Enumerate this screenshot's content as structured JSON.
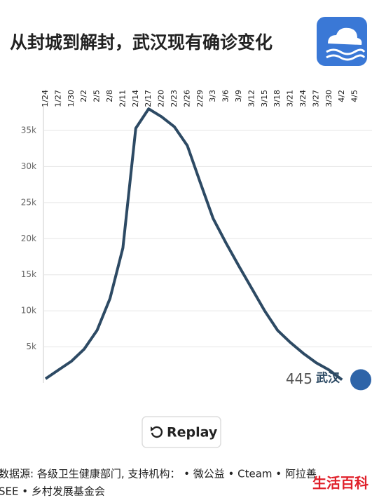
{
  "header": {
    "title": "从封城到解封，武汉现有确诊变化"
  },
  "chart_data": {
    "type": "line",
    "categories": [
      "1/24",
      "1/27",
      "1/30",
      "2/2",
      "2/5",
      "2/8",
      "2/11",
      "2/14",
      "2/17",
      "2/20",
      "2/23",
      "2/26",
      "2/29",
      "3/3",
      "3/6",
      "3/9",
      "3/12",
      "3/15",
      "3/18",
      "3/21",
      "3/24",
      "3/27",
      "3/30",
      "4/2",
      "4/5"
    ],
    "series": [
      {
        "name": "武汉",
        "color": "#2d4a64",
        "values": [
          580,
          1800,
          3000,
          4700,
          7300,
          11700,
          18700,
          35300,
          38000,
          36900,
          35500,
          32900,
          27800,
          22800,
          19400,
          16200,
          13100,
          10000,
          7300,
          5600,
          4100,
          2800,
          1800,
          445,
          null
        ]
      }
    ],
    "ylim": [
      0,
      38500
    ],
    "yticks": [
      {
        "value": 5000,
        "label": "5k"
      },
      {
        "value": 10000,
        "label": "10k"
      },
      {
        "value": 15000,
        "label": "15k"
      },
      {
        "value": 20000,
        "label": "20k"
      },
      {
        "value": 25000,
        "label": "25k"
      },
      {
        "value": 30000,
        "label": "30k"
      },
      {
        "value": 35000,
        "label": "35k"
      }
    ],
    "grid": true
  },
  "controls": {
    "replay": "Replay"
  },
  "footer": {
    "line1": "数据源: 各级卫生健康部门, 支持机构： • 微公益 • Cteam • 阿拉善",
    "line2": "SEE • 乡村发展基金会"
  },
  "watermark": "生活百科"
}
